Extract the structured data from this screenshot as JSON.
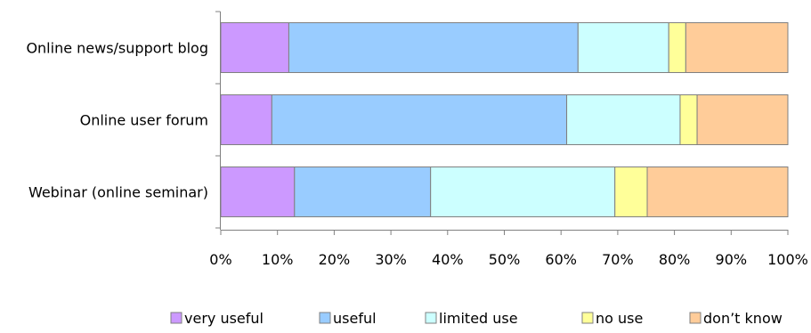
{
  "chart_data": {
    "type": "bar",
    "orientation": "horizontal",
    "stacked": true,
    "percent_stacked": true,
    "title": "",
    "xlabel": "",
    "ylabel": "",
    "xlim": [
      0,
      100
    ],
    "x_ticks": [
      "0%",
      "10%",
      "20%",
      "30%",
      "40%",
      "50%",
      "60%",
      "70%",
      "80%",
      "90%",
      "100%"
    ],
    "categories": [
      "Online news/support blog",
      "Online user forum",
      "Webinar (online seminar)"
    ],
    "series": [
      {
        "name": "very useful",
        "color": "#cc99ff",
        "values": [
          12,
          9,
          13
        ]
      },
      {
        "name": "useful",
        "color": "#99ccff",
        "values": [
          51,
          52,
          24
        ]
      },
      {
        "name": "limited use",
        "color": "#ccffff",
        "values": [
          16,
          20,
          32.5
        ]
      },
      {
        "name": "no use",
        "color": "#ffff99",
        "values": [
          3,
          3,
          5.7
        ]
      },
      {
        "name": "don't know",
        "color": "#ffcc99",
        "values": [
          18,
          16,
          24.8
        ]
      }
    ],
    "legend": {
      "position": "bottom",
      "labels": [
        "very useful",
        "useful",
        "limited use",
        "no use",
        "don’t know"
      ]
    },
    "grid": false
  }
}
